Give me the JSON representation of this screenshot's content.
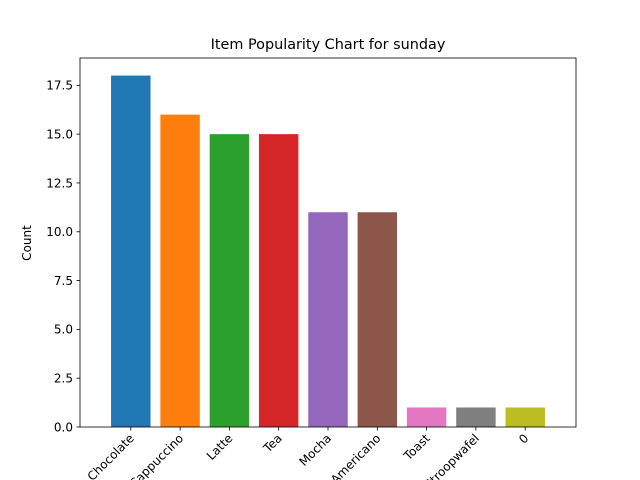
{
  "chart_data": {
    "type": "bar",
    "title": "Item Popularity Chart for sunday",
    "xlabel": "",
    "ylabel": "Count",
    "categories": [
      "Hot Chocolate",
      "Cappuccino",
      "Latte",
      "Tea",
      "Mocha",
      "Americano",
      "Toast",
      "Stroopwafel",
      "0"
    ],
    "values": [
      18,
      16,
      15,
      15,
      11,
      11,
      1,
      1,
      1
    ],
    "colors": [
      "#1f77b4",
      "#ff7f0e",
      "#2ca02c",
      "#d62728",
      "#9467bd",
      "#8c564b",
      "#e377c2",
      "#7f7f7f",
      "#bcbd22"
    ],
    "ylim": [
      0,
      18.9
    ],
    "yticks": [
      "0.0",
      "2.5",
      "5.0",
      "7.5",
      "10.0",
      "12.5",
      "15.0",
      "17.5"
    ],
    "ytick_values": [
      0,
      2.5,
      5,
      7.5,
      10,
      12.5,
      15,
      17.5
    ],
    "xtick_rotation": 45,
    "grid": false,
    "legend": "none"
  }
}
